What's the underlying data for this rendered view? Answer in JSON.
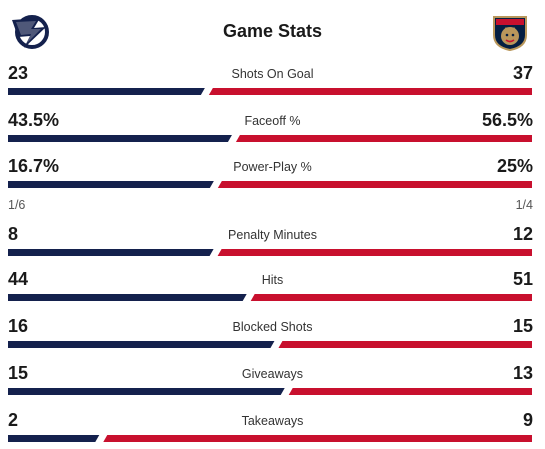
{
  "header": {
    "title": "Game Stats",
    "home_logo": "lightning-logo-icon",
    "away_logo": "panthers-logo-icon"
  },
  "colors": {
    "home_bar": "#14214d",
    "away_bar": "#c8102e"
  },
  "stats": [
    {
      "label": "Shots On Goal",
      "home": "23",
      "away": "37",
      "home_num": 23,
      "away_num": 37
    },
    {
      "label": "Faceoff %",
      "home": "43.5%",
      "away": "56.5%",
      "home_num": 43.5,
      "away_num": 56.5
    },
    {
      "label": "Power-Play %",
      "home": "16.7%",
      "away": "25%",
      "home_num": 16.7,
      "away_num": 25,
      "home_sub": "1/6",
      "away_sub": "1/4"
    },
    {
      "label": "Penalty Minutes",
      "home": "8",
      "away": "12",
      "home_num": 8,
      "away_num": 12
    },
    {
      "label": "Hits",
      "home": "44",
      "away": "51",
      "home_num": 44,
      "away_num": 51
    },
    {
      "label": "Blocked Shots",
      "home": "16",
      "away": "15",
      "home_num": 16,
      "away_num": 15
    },
    {
      "label": "Giveaways",
      "home": "15",
      "away": "13",
      "home_num": 15,
      "away_num": 13
    },
    {
      "label": "Takeaways",
      "home": "2",
      "away": "9",
      "home_num": 2,
      "away_num": 9
    }
  ]
}
